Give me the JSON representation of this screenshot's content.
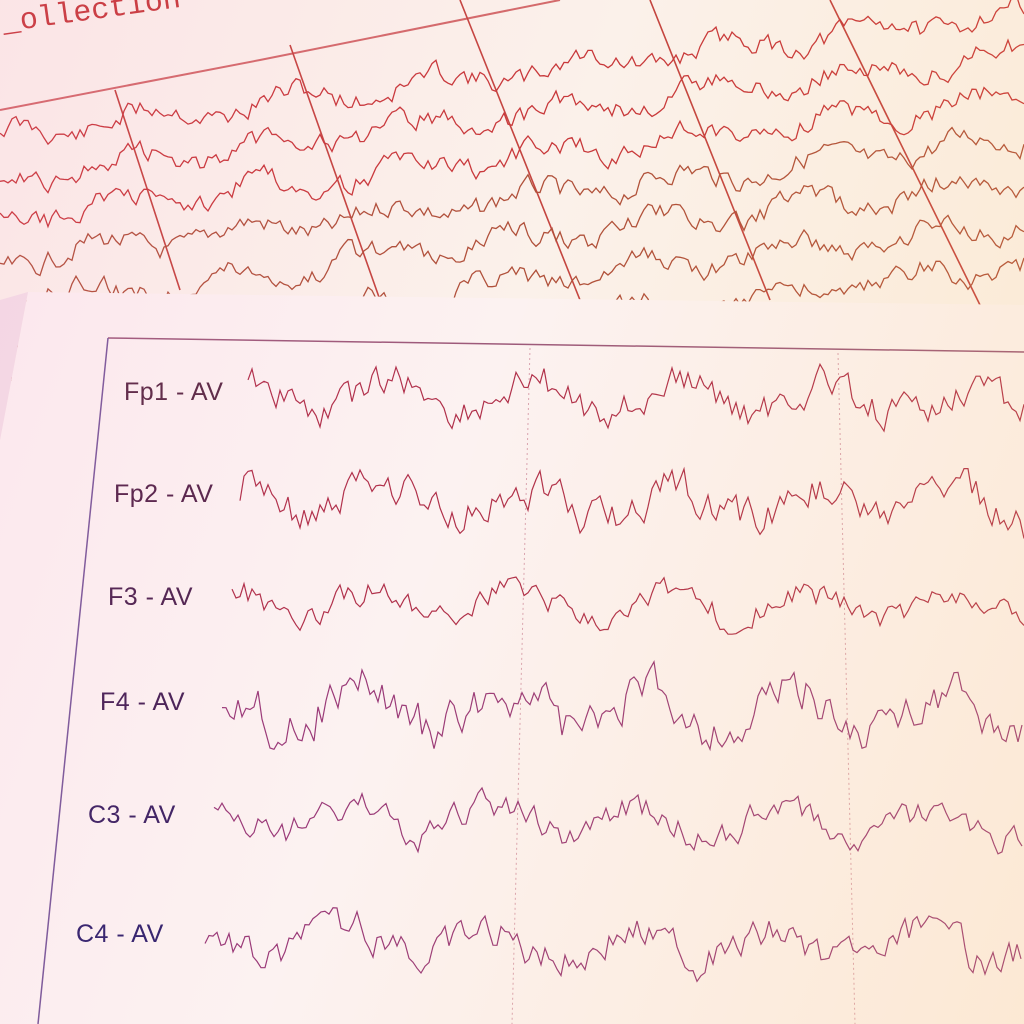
{
  "back_sheet": {
    "title_fragment": "_ollection",
    "trace_color": "#c0392b"
  },
  "front_sheet": {
    "channels": [
      {
        "label": "Fp1 - AV",
        "color": "#5a2a45"
      },
      {
        "label": "Fp2 - AV",
        "color": "#55254a"
      },
      {
        "label": "F3 - AV",
        "color": "#4e2450"
      },
      {
        "label": "F4 - AV",
        "color": "#472256"
      },
      {
        "label": "C3 - AV",
        "color": "#3d2363"
      },
      {
        "label": "C4 - AV",
        "color": "#34246e"
      }
    ],
    "trace_color": "#b0304a",
    "grid_color": "#d9a3b0"
  }
}
